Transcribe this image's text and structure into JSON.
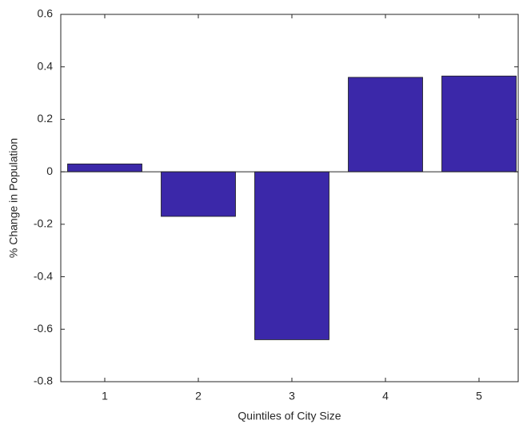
{
  "chart_data": {
    "type": "bar",
    "xlabel": "Quintiles of City Size",
    "ylabel": "% Change in Population",
    "categories": [
      "1",
      "2",
      "3",
      "4",
      "5"
    ],
    "values": [
      0.03,
      -0.17,
      -0.64,
      0.36,
      0.365
    ],
    "color": "#3b28a9",
    "ylim": [
      -0.8,
      0.6
    ],
    "yticks": [
      -0.8,
      -0.6,
      -0.4,
      -0.2,
      0,
      0.2,
      0.4,
      0.6
    ],
    "grid": false
  }
}
